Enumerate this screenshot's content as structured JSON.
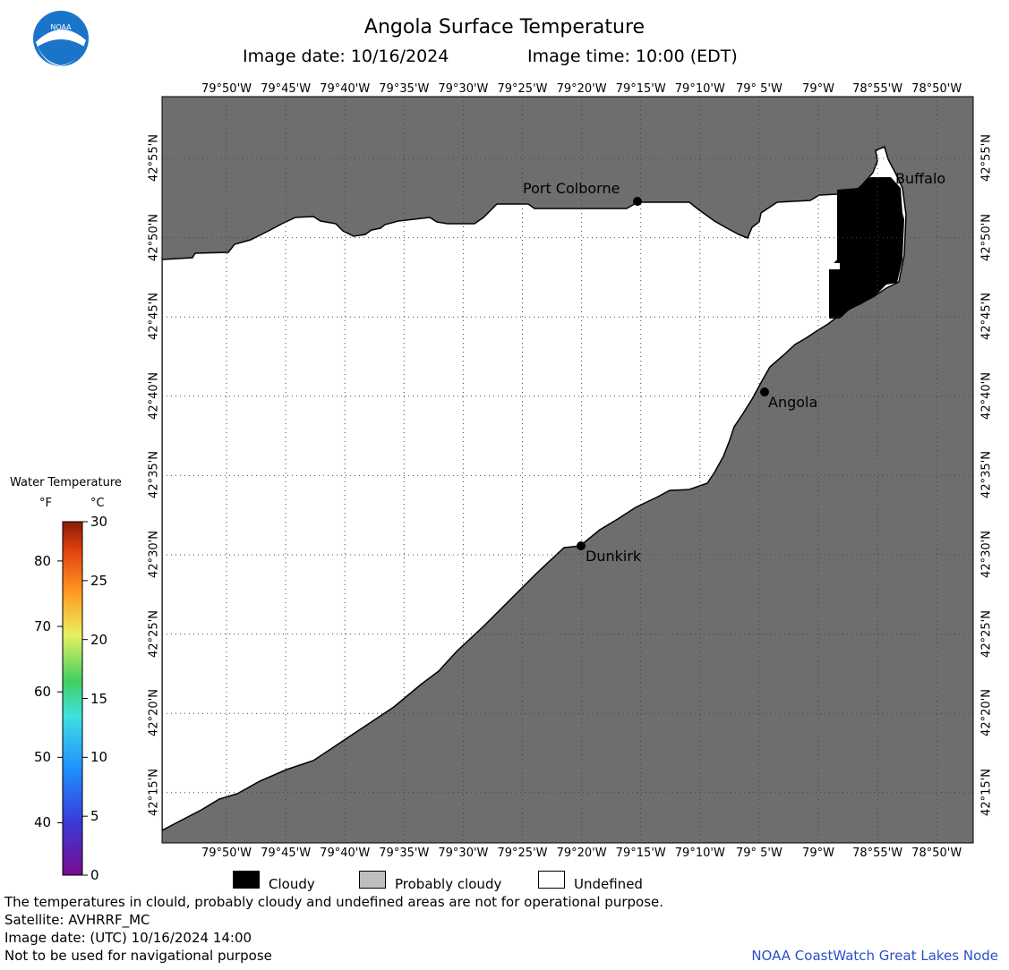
{
  "header": {
    "title": "Angola Surface Temperature",
    "image_date": "Image date: 10/16/2024",
    "image_time": "Image time: 10:00 (EDT)",
    "logo_text": "NOAA"
  },
  "map": {
    "lon_labels": [
      "79°50'W",
      "79°45'W",
      "79°40'W",
      "79°35'W",
      "79°30'W",
      "79°25'W",
      "79°20'W",
      "79°15'W",
      "79°10'W",
      "79° 5'W",
      "79°W",
      "78°55'W",
      "78°50'W"
    ],
    "lat_labels": [
      "42°55'N",
      "42°50'N",
      "42°45'N",
      "42°40'N",
      "42°35'N",
      "42°30'N",
      "42°25'N",
      "42°20'N",
      "42°15'N"
    ],
    "places": [
      {
        "name": "Port Colborne"
      },
      {
        "name": "Buffalo"
      },
      {
        "name": "Angola"
      },
      {
        "name": "Dunkirk"
      }
    ],
    "colors": {
      "land": "#6e6e6e",
      "water_undefined": "#ffffff",
      "cloudy": "#000000",
      "probably_cloudy": "#bebebe"
    }
  },
  "colorbar": {
    "title": "Water Temperature",
    "unit_f": "°F",
    "unit_c": "°C",
    "f_ticks": [
      "80",
      "70",
      "60",
      "50",
      "40"
    ],
    "c_ticks": [
      "30",
      "25",
      "20",
      "15",
      "10",
      "5",
      "0"
    ]
  },
  "key": {
    "cloudy": "Cloudy",
    "probably_cloudy": "Probably cloudy",
    "undefined": "Undefined"
  },
  "footer": {
    "disclaimer": "The temperatures in clould, probably cloudy and undefined areas are not for operational purpose.",
    "satellite": "Satellite: AVHRRF_MC",
    "utc_date": "Image date: (UTC) 10/16/2024  14:00",
    "navigation": "Not to be used for navigational purpose",
    "credit": "NOAA CoastWatch Great Lakes Node"
  }
}
